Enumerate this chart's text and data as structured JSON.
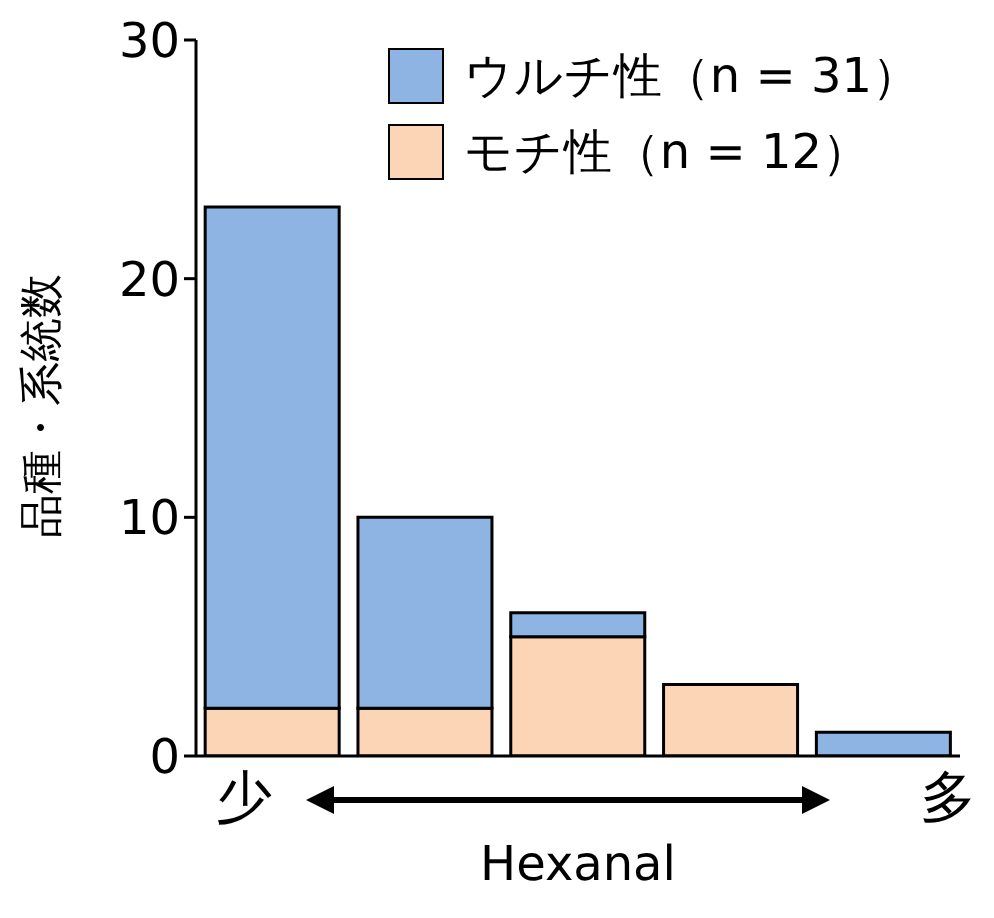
{
  "chart_data": {
    "type": "bar",
    "stacked": true,
    "xlabel": "Hexanal",
    "ylabel": "品種・系統数",
    "categories": [
      null,
      null,
      null,
      null,
      null
    ],
    "series": [
      {
        "name": "モチ性（n = 12）",
        "color": "#fbd5b5",
        "values": [
          2,
          2,
          5,
          3,
          0
        ]
      },
      {
        "name": "ウルチ性（n = 31）",
        "color": "#8eb4e3",
        "values": [
          21,
          8,
          1,
          0,
          1
        ]
      }
    ],
    "ylim": [
      0,
      30
    ],
    "yticks": [
      0,
      10,
      20,
      30
    ],
    "grid": false,
    "legend": "top right",
    "annotations": [
      "少",
      "多"
    ]
  }
}
